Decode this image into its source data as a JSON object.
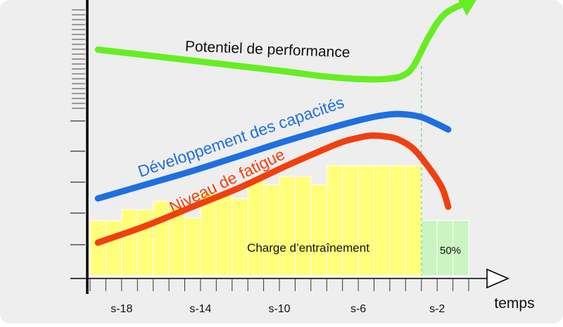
{
  "chart_data": {
    "type": "area",
    "xlabel": "temps",
    "x_ticks": [
      "s-18",
      "s-14",
      "s-10",
      "s-6",
      "s-2"
    ],
    "bars": {
      "name": "Charge d’entraînement",
      "color": "#ffff7a",
      "values": [
        2,
        2,
        2.4,
        2.4,
        2.7,
        2.5,
        2.1,
        3,
        3,
        2.8,
        3.5,
        3.3,
        3.6,
        3.6,
        3.3,
        4,
        4,
        4,
        4,
        4,
        4,
        2,
        2,
        2
      ],
      "reduced_label": "50%",
      "reduced_color": "#c8f5c0",
      "reduced_count": 3
    },
    "series": [
      {
        "name": "Potentiel de performance",
        "color": "#66ee22",
        "x": [
          1,
          4,
          7,
          10,
          13,
          15,
          17,
          18.5,
          19.5,
          20.3,
          21,
          22,
          23,
          24.5
        ],
        "y": [
          8.2,
          8,
          7.8,
          7.6,
          7.4,
          7.25,
          7.15,
          7.12,
          7.15,
          7.25,
          7.6,
          8.7,
          9.5,
          9.95
        ]
      },
      {
        "name": "Développement des capacités",
        "color": "#1e6fe0",
        "x": [
          1,
          4,
          7,
          10,
          13,
          16,
          18,
          19.5,
          20.5,
          21.5,
          22.5,
          23.2
        ],
        "y": [
          2.8,
          3.3,
          3.8,
          4.35,
          4.9,
          5.4,
          5.7,
          5.85,
          5.85,
          5.75,
          5.5,
          5.3
        ]
      },
      {
        "name": "Niveau de fatigue",
        "color": "#f04010",
        "x": [
          1,
          4,
          7,
          10,
          13,
          15,
          16.5,
          17.5,
          18.3,
          19.2,
          20,
          21,
          22,
          22.8,
          23.2
        ],
        "y": [
          1.2,
          1.8,
          2.5,
          3.2,
          4,
          4.5,
          4.85,
          5,
          5.08,
          5.05,
          4.95,
          4.6,
          3.9,
          3.2,
          2.5
        ]
      }
    ],
    "xlim": [
      0.5,
      24.5
    ],
    "ylim": [
      0,
      10
    ],
    "grid": false,
    "colors": {
      "panel": "#eeeeee",
      "axis": "#000000",
      "tick": "#333333"
    }
  }
}
